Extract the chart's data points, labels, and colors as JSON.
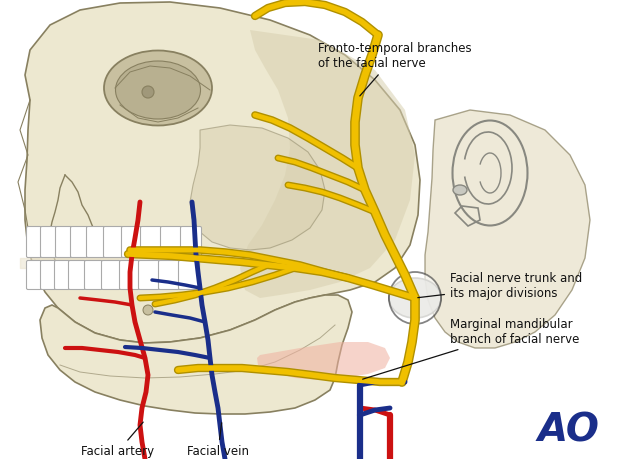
{
  "bg_color": "#ffffff",
  "skull_fill": "#ede8d0",
  "skull_edge": "#888060",
  "skull_shadow": "#d8d0b0",
  "skull_dark": "#c8c0a0",
  "nerve_yellow": "#f0c000",
  "nerve_edge": "#b09000",
  "artery_red": "#cc1111",
  "vein_blue": "#1a2e8a",
  "soft_pink": "#f0b0a0",
  "ear_line": "#888880",
  "parotid_fill": "#c8c8c0",
  "parotid_edge": "#909088",
  "ao_color": "#1a2e8a",
  "ann_color": "#111111",
  "label_fronto": "Fronto-temporal branches\nof the facial nerve",
  "label_trunk": "Facial nerve trunk and\nits major divisions",
  "label_marginal": "Marginal mandibular\nbranch of facial nerve",
  "label_artery": "Facial artery",
  "label_vein": "Facial vein",
  "figwidth": 6.2,
  "figheight": 4.59,
  "dpi": 100
}
